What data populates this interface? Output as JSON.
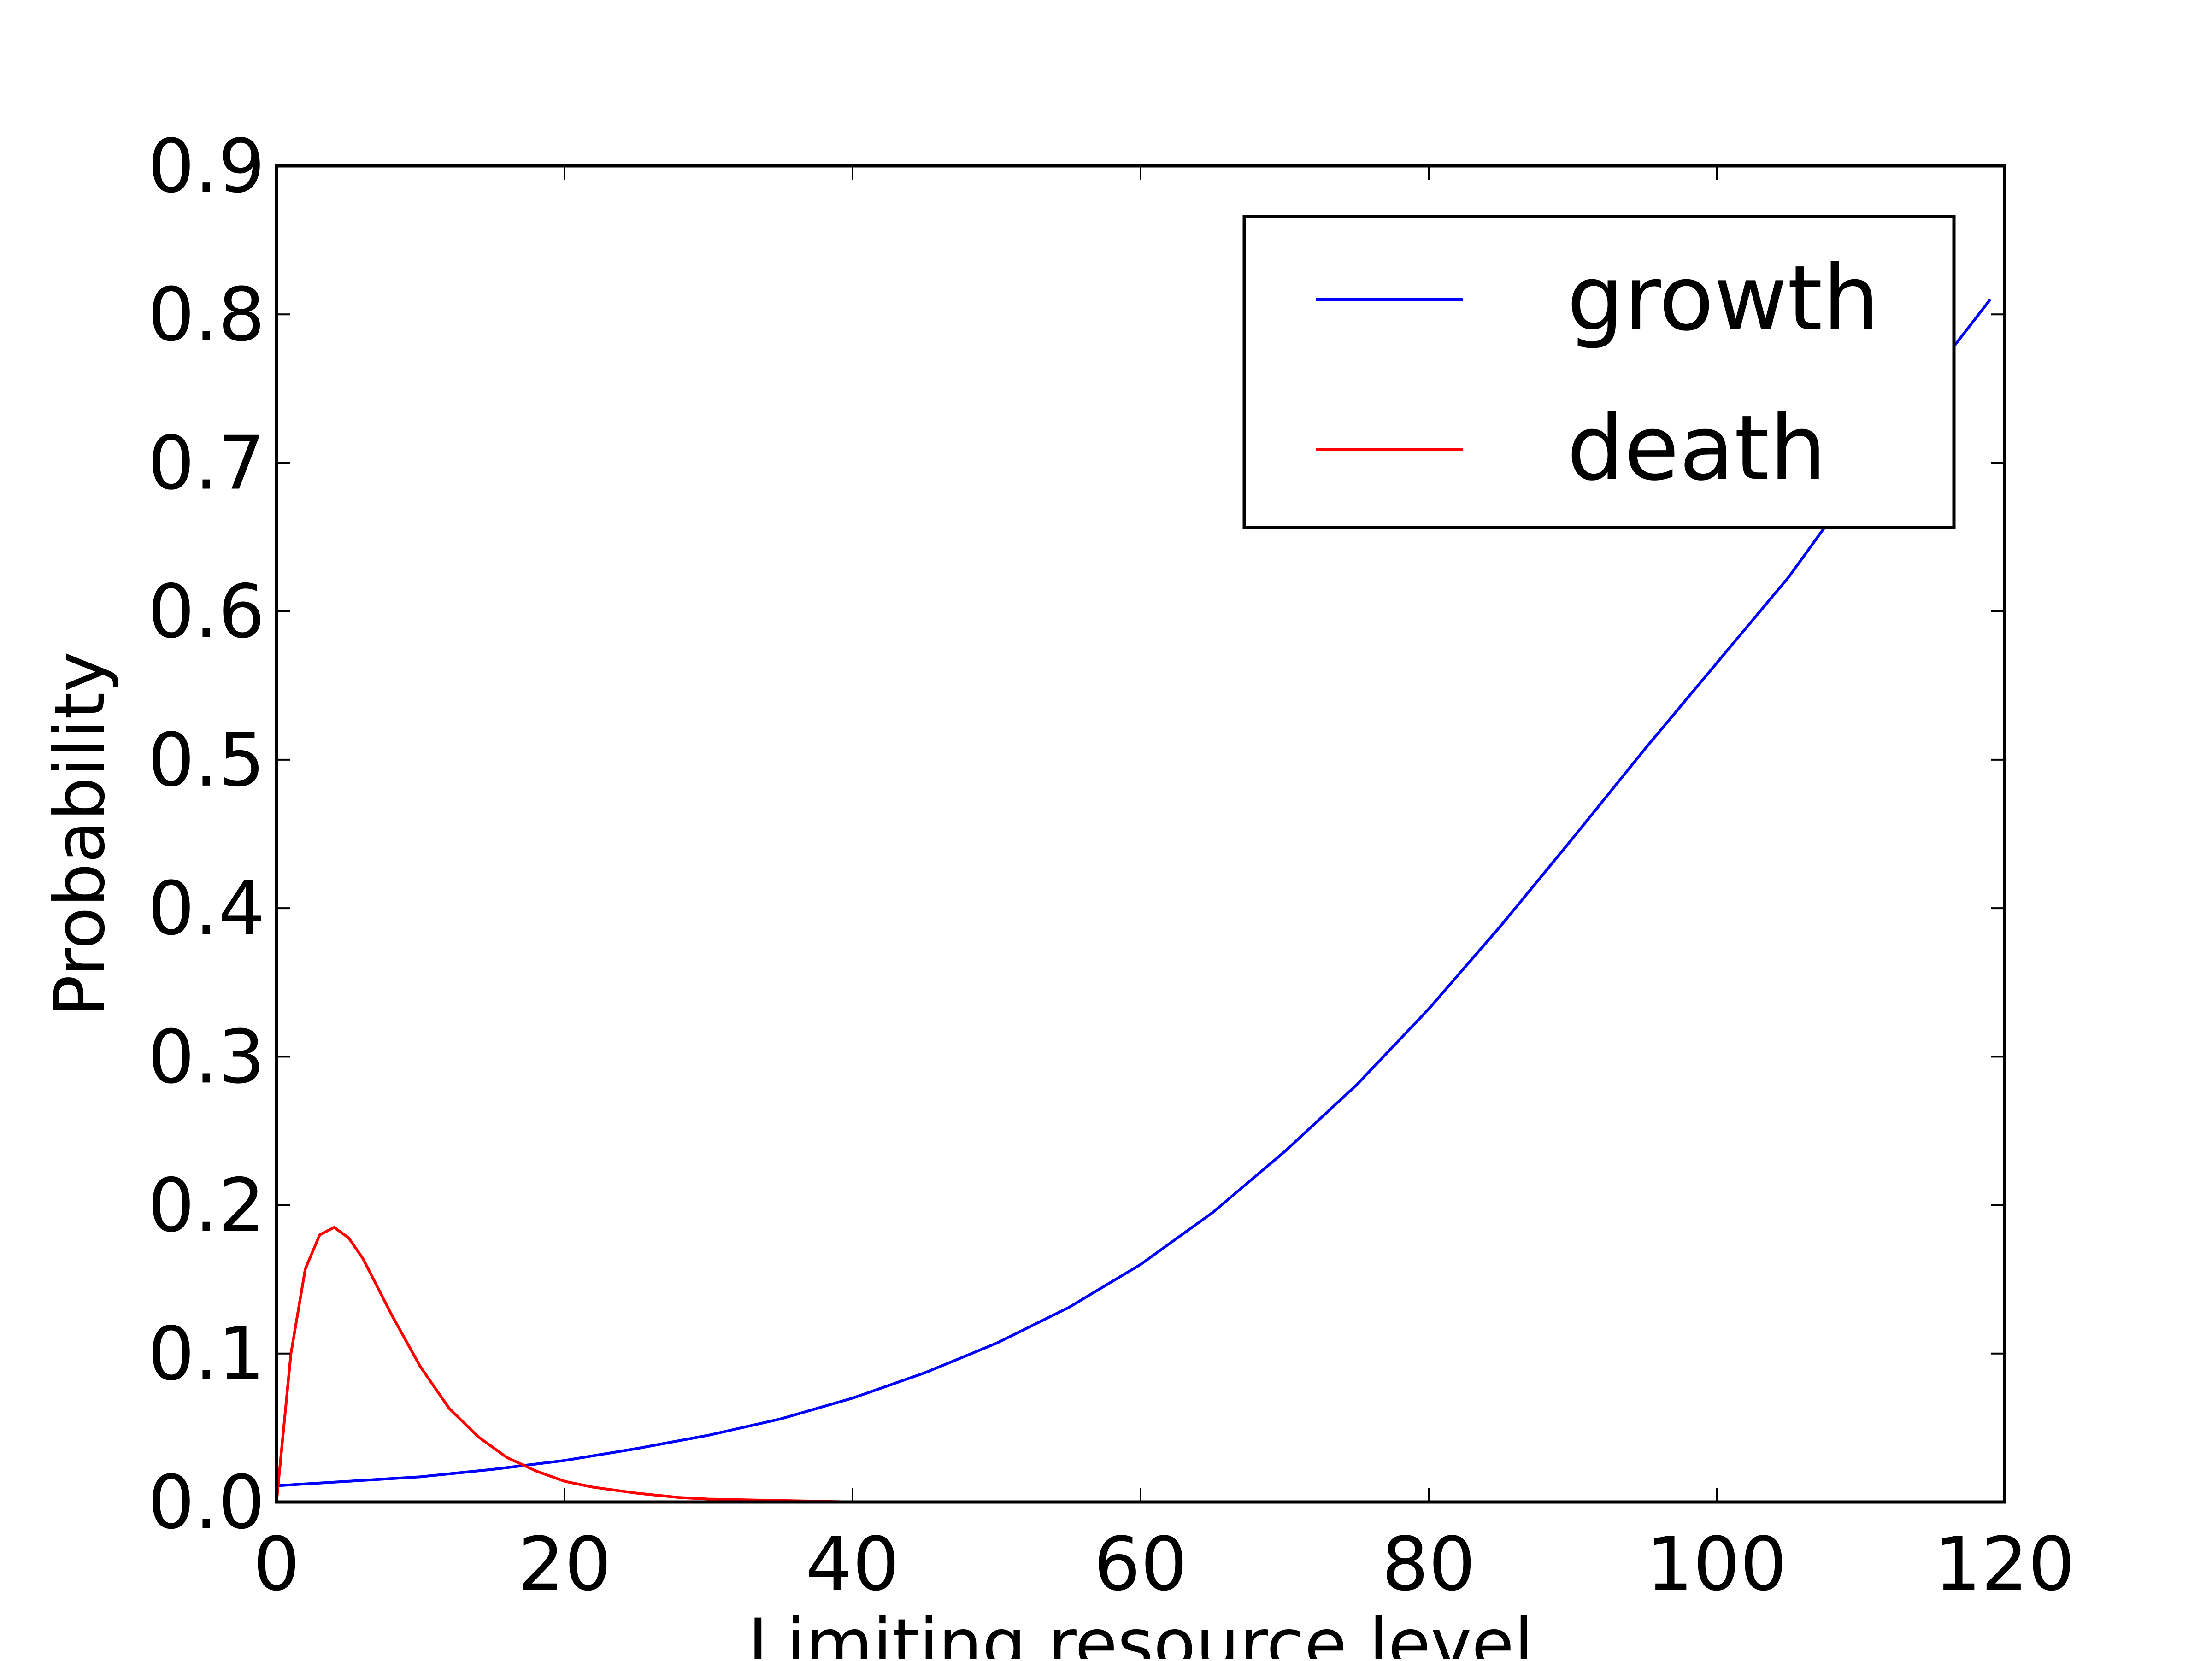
{
  "chart_data": {
    "type": "line",
    "title": "",
    "xlabel": "Limiting resource level",
    "ylabel": "Probability",
    "xlim": [
      0,
      120
    ],
    "ylim": [
      0,
      0.9
    ],
    "x_ticks": [
      "0",
      "20",
      "40",
      "60",
      "80",
      "100",
      "120"
    ],
    "y_ticks": [
      "0.0",
      "0.1",
      "0.2",
      "0.3",
      "0.4",
      "0.5",
      "0.6",
      "0.7",
      "0.8",
      "0.9"
    ],
    "grid": false,
    "legend_position": "upper-right",
    "series": [
      {
        "name": "growth",
        "color": "#0000ff",
        "x": [
          0,
          5,
          10,
          15,
          20,
          25,
          30,
          35,
          40,
          45,
          50,
          55,
          60,
          65,
          70,
          75,
          80,
          85,
          90,
          95,
          100,
          105,
          110,
          115,
          119
        ],
        "y": [
          0.011,
          0.014,
          0.017,
          0.022,
          0.028,
          0.036,
          0.045,
          0.056,
          0.07,
          0.087,
          0.107,
          0.131,
          0.16,
          0.195,
          0.236,
          0.281,
          0.332,
          0.388,
          0.447,
          0.507,
          0.565,
          0.623,
          0.69,
          0.76,
          0.81
        ]
      },
      {
        "name": "death",
        "color": "#ff0000",
        "x": [
          0,
          1,
          2,
          3,
          4,
          5,
          6,
          7,
          8,
          10,
          12,
          14,
          16,
          18,
          20,
          22,
          25,
          28,
          30,
          35,
          40,
          50,
          60
        ],
        "y": [
          0.0,
          0.1,
          0.157,
          0.18,
          0.185,
          0.178,
          0.164,
          0.145,
          0.126,
          0.091,
          0.063,
          0.044,
          0.03,
          0.021,
          0.014,
          0.01,
          0.006,
          0.003,
          0.002,
          0.001,
          0.0,
          0.0,
          0.0
        ]
      }
    ]
  }
}
